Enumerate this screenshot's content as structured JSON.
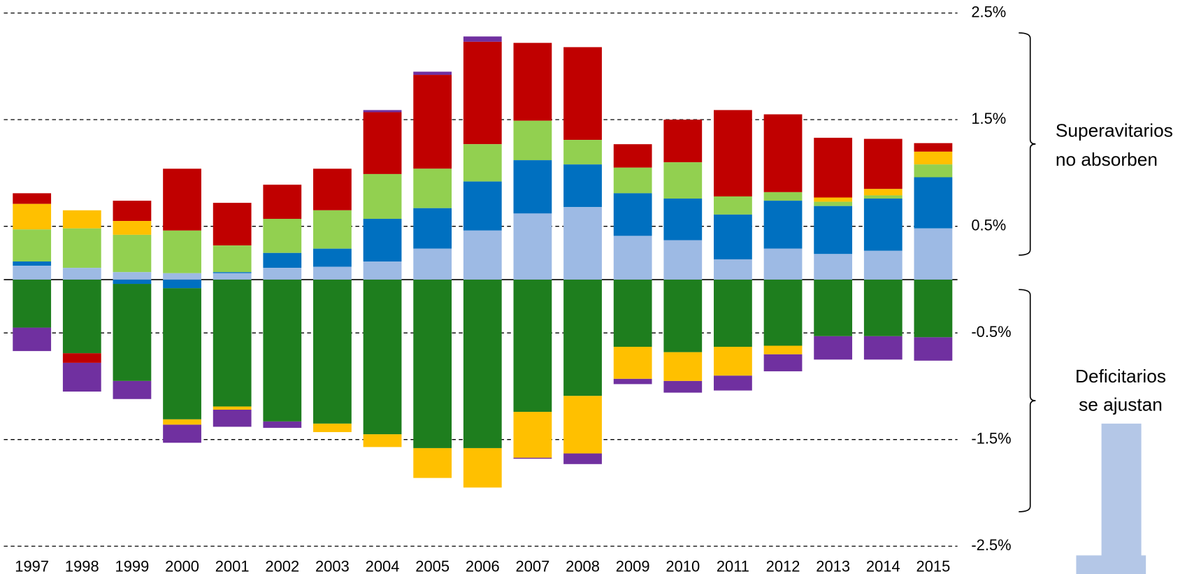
{
  "chart_data": {
    "type": "stacked-bar",
    "categories": [
      "1997",
      "1998",
      "1999",
      "2000",
      "2001",
      "2002",
      "2003",
      "2004",
      "2005",
      "2006",
      "2007",
      "2008",
      "2009",
      "2010",
      "2011",
      "2012",
      "2013",
      "2014",
      "2015"
    ],
    "series": [
      {
        "color": "#9dbae4",
        "values": [
          0.13,
          0.11,
          0.07,
          0.06,
          0.06,
          0.11,
          0.12,
          0.17,
          0.29,
          0.46,
          0.62,
          0.68,
          0.41,
          0.37,
          0.19,
          0.29,
          0.24,
          0.27,
          0.48
        ]
      },
      {
        "color": "#0070c0",
        "values": [
          0.04,
          0,
          -0.04,
          -0.08,
          0.01,
          0.14,
          0.17,
          0.4,
          0.38,
          0.46,
          0.5,
          0.4,
          0.4,
          0.39,
          0.42,
          0.45,
          0.45,
          0.49,
          0.48
        ]
      },
      {
        "color": "#1e7e1e",
        "values": [
          -0.45,
          -0.69,
          -0.91,
          -1.23,
          -1.19,
          -1.33,
          -1.35,
          -1.45,
          -1.58,
          -1.58,
          -1.24,
          -1.09,
          -0.63,
          -0.68,
          -0.63,
          -0.62,
          -0.53,
          -0.53,
          -0.54
        ]
      },
      {
        "color": "#92d050",
        "values": [
          0.3,
          0.37,
          0.35,
          0.4,
          0.25,
          0.32,
          0.36,
          0.42,
          0.37,
          0.35,
          0.37,
          0.23,
          0.24,
          0.34,
          0.17,
          0.08,
          0.04,
          0.03,
          0.12
        ]
      },
      {
        "color": "#ffc000",
        "values": [
          0.24,
          0.17,
          0.13,
          -0.05,
          -0.03,
          0,
          -0.08,
          -0.12,
          -0.28,
          -0.37,
          -0.43,
          -0.54,
          -0.3,
          -0.27,
          -0.27,
          -0.08,
          0.04,
          0.06,
          0.12
        ]
      },
      {
        "color": "#c00000",
        "values": [
          0.1,
          -0.09,
          0.19,
          0.58,
          0.4,
          0.32,
          0.39,
          0.58,
          0.88,
          0.96,
          0.73,
          0.87,
          0.22,
          0.4,
          0.81,
          0.73,
          0.56,
          0.47,
          0.08
        ]
      },
      {
        "color": "#7030a0",
        "values": [
          -0.22,
          -0.27,
          -0.17,
          -0.17,
          -0.16,
          -0.06,
          0,
          0.02,
          0.03,
          0.05,
          -0.01,
          -0.1,
          -0.05,
          -0.11,
          -0.14,
          -0.16,
          -0.22,
          -0.22,
          -0.22
        ]
      }
    ],
    "ylim": [
      -2.5,
      2.5
    ],
    "yticks": [
      {
        "value": 2.5,
        "label": "2.5%"
      },
      {
        "value": 1.5,
        "label": "1.5%"
      },
      {
        "value": 0.5,
        "label": "0.5%"
      },
      {
        "value": -0.5,
        "label": "-0.5%"
      },
      {
        "value": -1.5,
        "label": "-1.5%"
      },
      {
        "value": -2.5,
        "label": "-2.5%"
      }
    ],
    "grid": true,
    "annotations": [
      [
        "Superavitarios",
        "no absorben"
      ],
      [
        "Deficitarios",
        "se ajustan"
      ]
    ]
  }
}
